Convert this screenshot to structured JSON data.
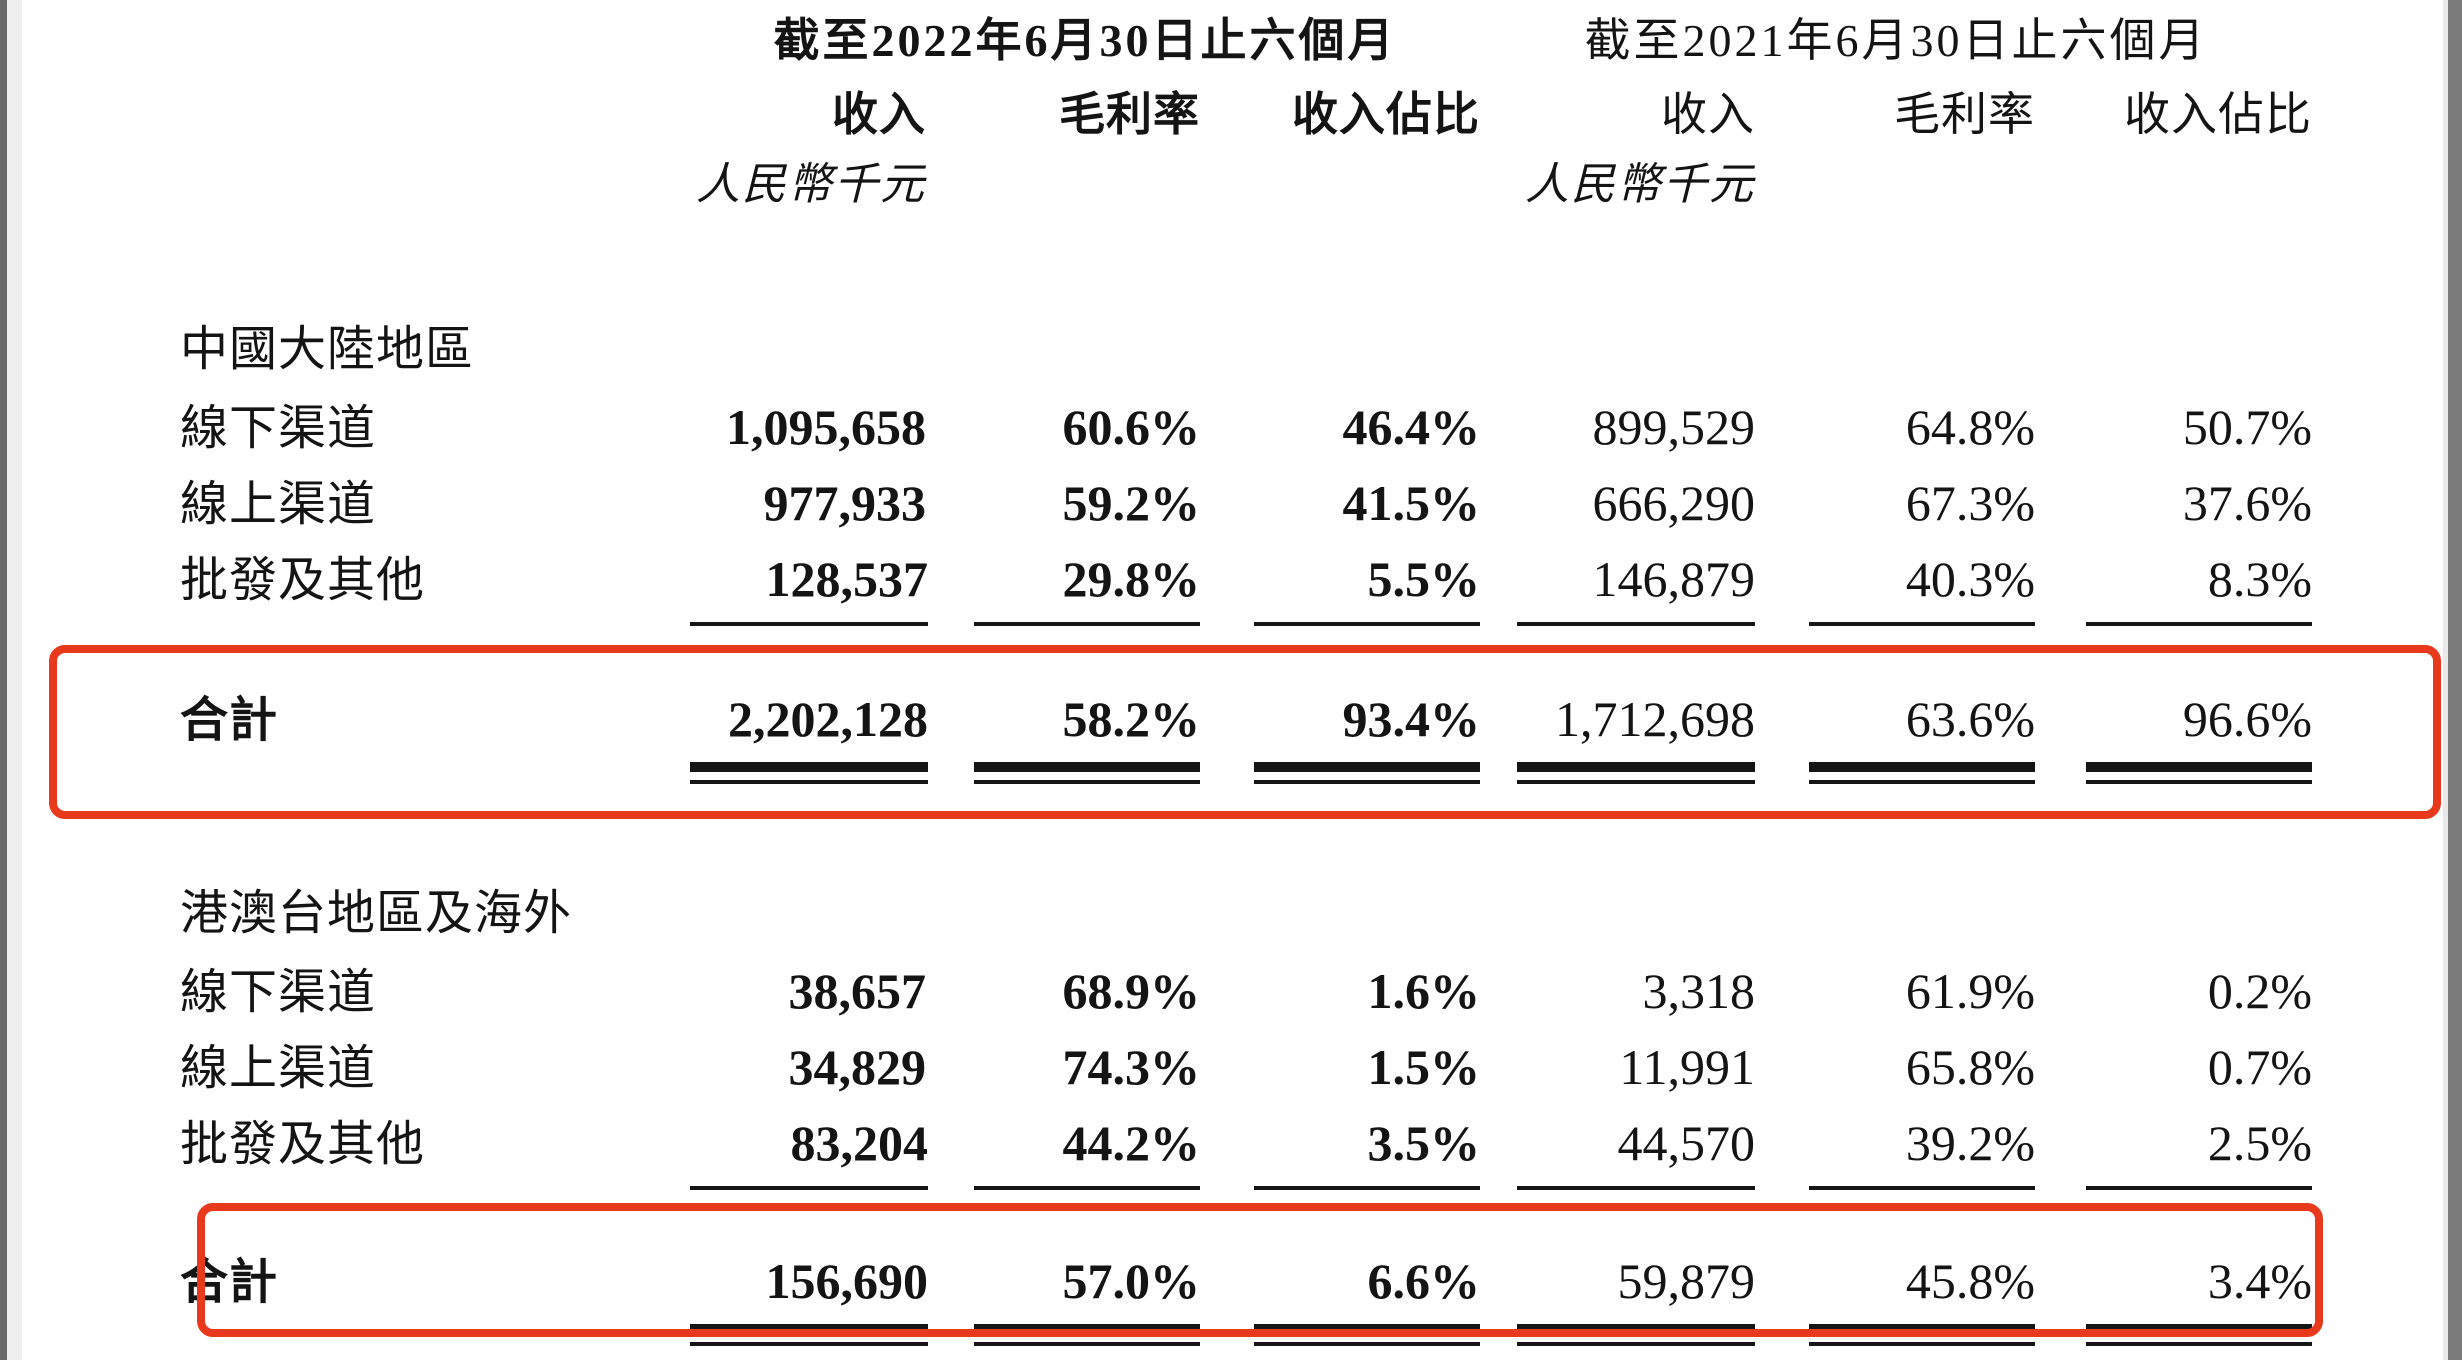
{
  "page": {
    "background_color": "#ffffff",
    "text_color": "#141414",
    "highlight_color": "#e8391d",
    "viewer_edge_left_color": "#6a6a6a",
    "viewer_edge_right_color": "#7b7b7b"
  },
  "header": {
    "period_2022": "截至2022年6月30日止六個月",
    "period_2021": "截至2021年6月30日止六個月",
    "columns": {
      "revenue": "收入",
      "gross_margin": "毛利率",
      "revenue_share": "收入佔比"
    },
    "currency_note": "人民幣千元"
  },
  "table": {
    "sections": [
      {
        "title": "中國大陸地區",
        "rows": [
          {
            "label": "線下渠道",
            "values": [
              "1,095,658",
              "60.6%",
              "46.4%",
              "899,529",
              "64.8%",
              "50.7%"
            ]
          },
          {
            "label": "線上渠道",
            "values": [
              "977,933",
              "59.2%",
              "41.5%",
              "666,290",
              "67.3%",
              "37.6%"
            ]
          },
          {
            "label": "批發及其他",
            "values": [
              "128,537",
              "29.8%",
              "5.5%",
              "146,879",
              "40.3%",
              "8.3%"
            ]
          }
        ],
        "total": {
          "label": "合計",
          "values": [
            "2,202,128",
            "58.2%",
            "93.4%",
            "1,712,698",
            "63.6%",
            "96.6%"
          ]
        }
      },
      {
        "title": "港澳台地區及海外",
        "rows": [
          {
            "label": "線下渠道",
            "values": [
              "38,657",
              "68.9%",
              "1.6%",
              "3,318",
              "61.9%",
              "0.2%"
            ]
          },
          {
            "label": "線上渠道",
            "values": [
              "34,829",
              "74.3%",
              "1.5%",
              "11,991",
              "65.8%",
              "0.7%"
            ]
          },
          {
            "label": "批發及其他",
            "values": [
              "83,204",
              "44.2%",
              "3.5%",
              "44,570",
              "39.2%",
              "2.5%"
            ]
          }
        ],
        "total": {
          "label": "合計",
          "values": [
            "156,690",
            "57.0%",
            "6.6%",
            "59,879",
            "45.8%",
            "3.4%"
          ]
        }
      }
    ]
  }
}
